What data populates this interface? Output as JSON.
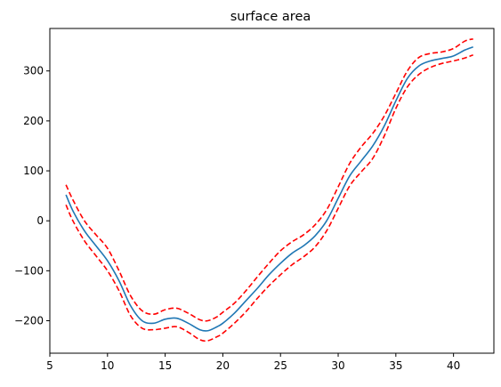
{
  "chart_data": {
    "type": "line",
    "title": "surface area",
    "xlabel": "",
    "ylabel": "",
    "xlim": [
      5.0,
      43.5
    ],
    "ylim": [
      -265,
      385
    ],
    "xticks": [
      5,
      10,
      15,
      20,
      25,
      30,
      35,
      40
    ],
    "yticks": [
      -200,
      -100,
      0,
      100,
      200,
      300
    ],
    "grid": false,
    "legend": "none",
    "series": [
      {
        "role": "mean",
        "color": "#1f77b4",
        "style": "solid",
        "x": [
          6.4,
          7,
          8,
          9,
          10,
          11,
          12,
          13,
          14,
          15,
          16,
          17,
          18,
          18.7,
          19.5,
          20,
          21,
          22,
          23,
          24,
          25,
          26,
          27,
          28,
          29,
          30,
          31,
          32,
          33,
          34,
          35,
          36,
          37,
          38,
          39,
          40,
          41,
          41.7
        ],
        "y": [
          52,
          20,
          -20,
          -50,
          -80,
          -120,
          -170,
          -200,
          -205,
          -197,
          -195,
          -205,
          -218,
          -220,
          -212,
          -205,
          -185,
          -160,
          -135,
          -108,
          -85,
          -65,
          -50,
          -30,
          0,
          45,
          90,
          120,
          150,
          190,
          240,
          285,
          310,
          320,
          325,
          330,
          342,
          348
        ]
      },
      {
        "role": "upper-bound",
        "color": "#ff0000",
        "style": "dashed",
        "x": [
          6.4,
          7,
          8,
          9,
          10,
          11,
          12,
          13,
          14,
          15,
          16,
          17,
          18,
          18.7,
          19.5,
          20,
          21,
          22,
          23,
          24,
          25,
          26,
          27,
          28,
          29,
          30,
          31,
          32,
          33,
          34,
          35,
          36,
          37,
          38,
          39,
          40,
          41,
          41.7
        ],
        "y": [
          72,
          42,
          0,
          -28,
          -55,
          -100,
          -150,
          -180,
          -187,
          -178,
          -175,
          -185,
          -198,
          -200,
          -192,
          -183,
          -165,
          -140,
          -112,
          -85,
          -60,
          -42,
          -28,
          -8,
          22,
          68,
          115,
          148,
          175,
          210,
          255,
          300,
          327,
          335,
          338,
          345,
          360,
          364
        ]
      },
      {
        "role": "lower-bound",
        "color": "#ff0000",
        "style": "dashed",
        "x": [
          6.4,
          7,
          8,
          9,
          10,
          11,
          12,
          13,
          14,
          15,
          16,
          17,
          18,
          18.7,
          19.5,
          20,
          21,
          22,
          23,
          24,
          25,
          26,
          27,
          28,
          29,
          30,
          31,
          32,
          33,
          34,
          35,
          36,
          37,
          38,
          39,
          40,
          41,
          41.7
        ],
        "y": [
          32,
          0,
          -40,
          -70,
          -100,
          -140,
          -190,
          -215,
          -218,
          -215,
          -212,
          -223,
          -238,
          -240,
          -232,
          -225,
          -205,
          -182,
          -155,
          -130,
          -108,
          -88,
          -72,
          -52,
          -20,
          25,
          70,
          98,
          125,
          170,
          225,
          268,
          293,
          307,
          315,
          320,
          326,
          332
        ]
      }
    ]
  }
}
